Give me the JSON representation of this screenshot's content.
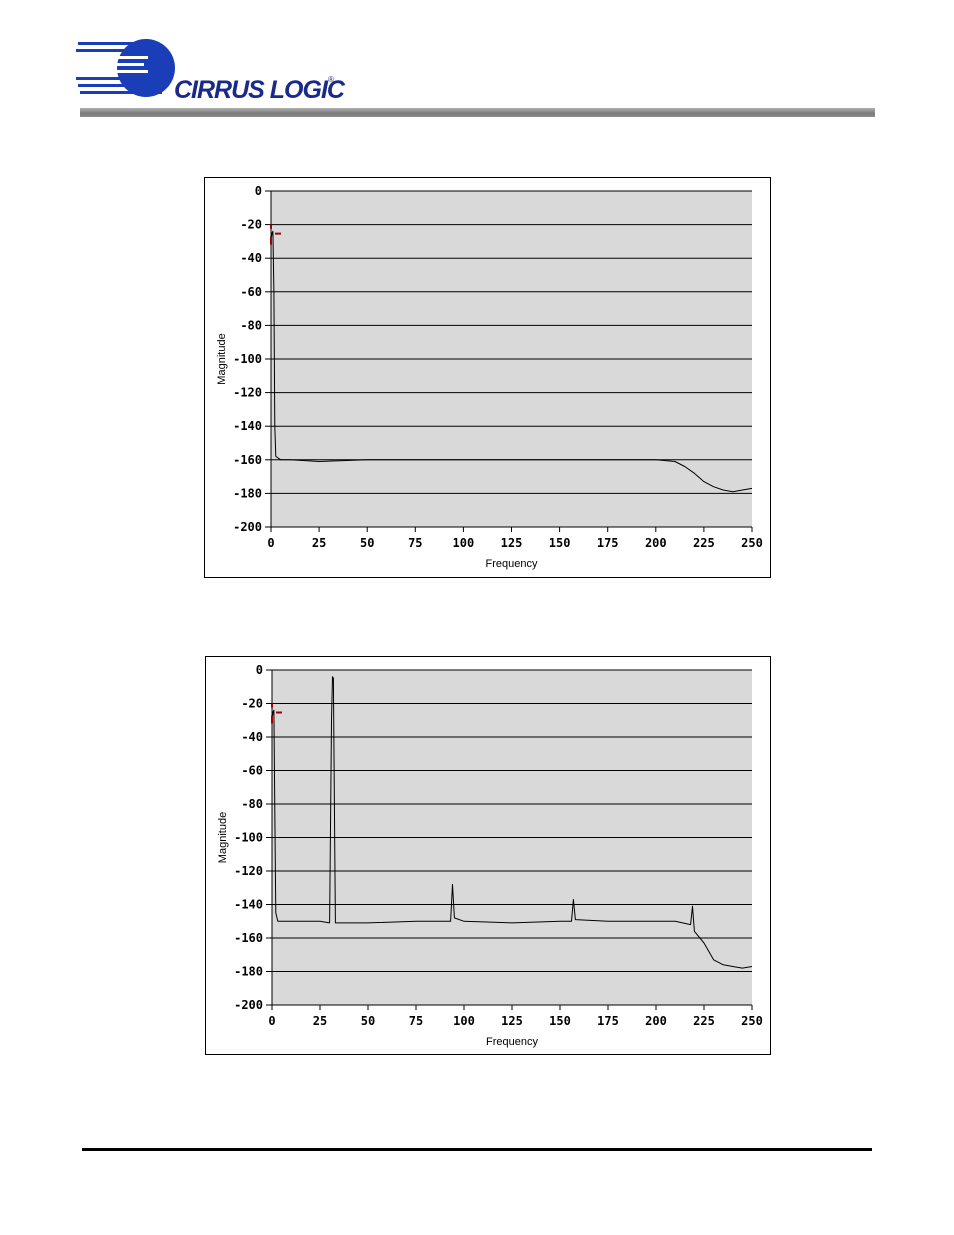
{
  "logo": {
    "text": "CIRRUS LOGIC",
    "mark": "®",
    "color_blue": "#1a3db8",
    "color_text": "#1a2a8a"
  },
  "chart_data": [
    {
      "type": "line",
      "title": "",
      "xlabel": "Frequency",
      "ylabel": "Magnitude",
      "xlim": [
        0,
        250
      ],
      "ylim": [
        -200,
        0
      ],
      "xticks": [
        0,
        25,
        50,
        75,
        100,
        125,
        150,
        175,
        200,
        225,
        250
      ],
      "yticks": [
        0,
        -20,
        -40,
        -60,
        -80,
        -100,
        -120,
        -140,
        -160,
        -180,
        -200
      ],
      "grid": "horizontal",
      "background": "#d9d9d9",
      "line_color": "#000000",
      "marker_color": "#a00000",
      "series": [
        {
          "points": [
            [
              0,
              -30
            ],
            [
              0.5,
              -25
            ],
            [
              1,
              -24
            ],
            [
              1.5,
              -60
            ],
            [
              2,
              -140
            ],
            [
              2.5,
              -158
            ],
            [
              5,
              -160
            ],
            [
              10,
              -160
            ],
            [
              25,
              -161
            ],
            [
              50,
              -160
            ],
            [
              75,
              -160
            ],
            [
              100,
              -160
            ],
            [
              125,
              -160
            ],
            [
              150,
              -160
            ],
            [
              175,
              -160
            ],
            [
              200,
              -160
            ],
            [
              210,
              -161
            ],
            [
              215,
              -164
            ],
            [
              220,
              -168
            ],
            [
              225,
              -173
            ],
            [
              230,
              -176
            ],
            [
              235,
              -178
            ],
            [
              240,
              -179
            ],
            [
              245,
              -178
            ],
            [
              250,
              -177
            ]
          ]
        }
      ]
    },
    {
      "type": "line",
      "title": "",
      "xlabel": "Frequency",
      "ylabel": "Magnitude",
      "xlim": [
        0,
        250
      ],
      "ylim": [
        -200,
        0
      ],
      "xticks": [
        0,
        25,
        50,
        75,
        100,
        125,
        150,
        175,
        200,
        225,
        250
      ],
      "yticks": [
        0,
        -20,
        -40,
        -60,
        -80,
        -100,
        -120,
        -140,
        -160,
        -180,
        -200
      ],
      "grid": "horizontal",
      "background": "#d9d9d9",
      "line_color": "#000000",
      "marker_color": "#a00000",
      "series": [
        {
          "points": [
            [
              0,
              -30
            ],
            [
              0.5,
              -25
            ],
            [
              1,
              -24
            ],
            [
              1.5,
              -90
            ],
            [
              2,
              -145
            ],
            [
              3,
              -150
            ],
            [
              10,
              -150
            ],
            [
              25,
              -150
            ],
            [
              30,
              -151
            ],
            [
              31,
              -30
            ],
            [
              31.5,
              -4
            ],
            [
              32,
              -5
            ],
            [
              32.5,
              -80
            ],
            [
              33,
              -151
            ],
            [
              50,
              -151
            ],
            [
              75,
              -150
            ],
            [
              93,
              -150
            ],
            [
              94,
              -128
            ],
            [
              95,
              -148
            ],
            [
              100,
              -150
            ],
            [
              125,
              -151
            ],
            [
              150,
              -150
            ],
            [
              156,
              -150
            ],
            [
              157,
              -137
            ],
            [
              158,
              -149
            ],
            [
              175,
              -150
            ],
            [
              200,
              -150
            ],
            [
              210,
              -150
            ],
            [
              218,
              -152
            ],
            [
              219,
              -141
            ],
            [
              220,
              -156
            ],
            [
              225,
              -163
            ],
            [
              230,
              -173
            ],
            [
              235,
              -176
            ],
            [
              240,
              -177
            ],
            [
              245,
              -178
            ],
            [
              250,
              -177
            ]
          ]
        }
      ]
    }
  ]
}
